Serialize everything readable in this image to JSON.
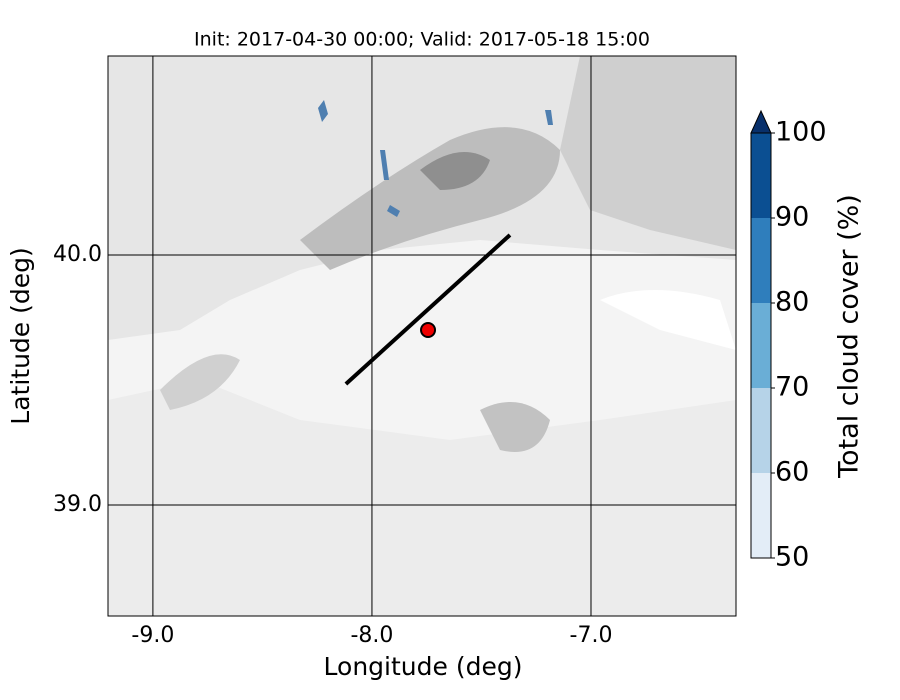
{
  "map": {
    "title": "Init: 2017-04-30 00:00; Valid: 2017-05-18 15:00",
    "xlabel": "Longitude (deg)",
    "ylabel": "Latitude (deg)",
    "xlim": [
      -9.205,
      -6.338
    ],
    "ylim": [
      38.556,
      40.796
    ],
    "xticks": [
      {
        "value": -9,
        "label": "-9.0"
      },
      {
        "value": -8,
        "label": "-8.0"
      },
      {
        "value": -7,
        "label": "-7.0"
      }
    ],
    "yticks": [
      {
        "value": 39,
        "label": "39.0"
      },
      {
        "value": 40,
        "label": "40.0"
      }
    ],
    "cross_section": {
      "lon": [
        -8.119,
        -7.37
      ],
      "lat": [
        39.484,
        40.08
      ]
    },
    "point": {
      "lon": -7.744,
      "lat": 39.7
    },
    "colorbar": {
      "label": "Total cloud cover (%)",
      "ticks": [
        50,
        60,
        70,
        80,
        90,
        100
      ],
      "colors": [
        "#e3edf7",
        "#b6d3e8",
        "#6aaed6",
        "#2f7ebc",
        "#0b4f92"
      ],
      "extend_color": "#08306b"
    }
  }
}
